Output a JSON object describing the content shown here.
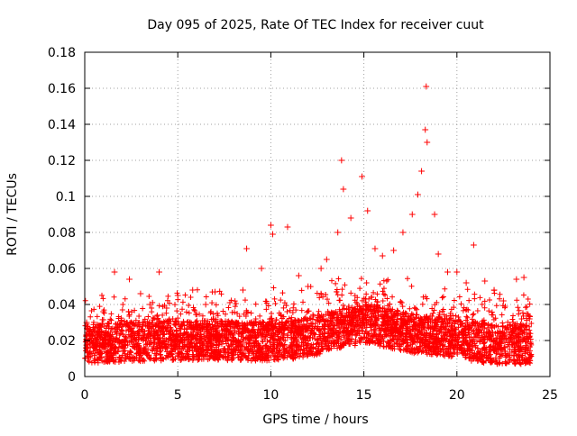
{
  "chart_data": {
    "type": "scatter",
    "title": "Day 095 of 2025, Rate Of TEC Index for receiver cuut",
    "xlabel": "GPS time / hours",
    "ylabel": "ROTI / TECUs",
    "xlim": [
      0,
      25
    ],
    "ylim": [
      0,
      0.18
    ],
    "xticks": [
      0,
      5,
      10,
      15,
      20,
      25
    ],
    "xtick_labels": [
      "0",
      "5",
      "10",
      "15",
      "20",
      "25"
    ],
    "yticks": [
      0,
      0.02,
      0.04,
      0.06,
      0.08,
      0.1,
      0.12,
      0.14,
      0.16,
      0.18
    ],
    "ytick_labels": [
      "0",
      "0.02",
      "0.04",
      "0.06",
      "0.08",
      "0.1",
      "0.12",
      "0.14",
      "0.16",
      "0.18"
    ],
    "grid": true,
    "marker": "+",
    "color": "#ff0000",
    "series": [
      {
        "name": "ROTI",
        "points": [
          [
            0.1,
            0.03
          ],
          [
            0.4,
            0.023
          ],
          [
            1.0,
            0.036
          ],
          [
            1.6,
            0.058
          ],
          [
            2.4,
            0.054
          ],
          [
            3.0,
            0.046
          ],
          [
            3.5,
            0.04
          ],
          [
            4.0,
            0.058
          ],
          [
            4.4,
            0.038
          ],
          [
            5.0,
            0.045
          ],
          [
            5.8,
            0.048
          ],
          [
            6.5,
            0.04
          ],
          [
            7.0,
            0.047
          ],
          [
            7.8,
            0.041
          ],
          [
            8.5,
            0.048
          ],
          [
            8.7,
            0.071
          ],
          [
            9.5,
            0.06
          ],
          [
            10.0,
            0.084
          ],
          [
            10.1,
            0.079
          ],
          [
            10.9,
            0.083
          ],
          [
            11.5,
            0.056
          ],
          [
            12.0,
            0.05
          ],
          [
            12.7,
            0.06
          ],
          [
            13.0,
            0.065
          ],
          [
            13.6,
            0.08
          ],
          [
            13.8,
            0.12
          ],
          [
            13.9,
            0.104
          ],
          [
            14.3,
            0.088
          ],
          [
            14.9,
            0.111
          ],
          [
            15.2,
            0.092
          ],
          [
            15.6,
            0.071
          ],
          [
            16.0,
            0.067
          ],
          [
            16.6,
            0.07
          ],
          [
            17.1,
            0.08
          ],
          [
            17.6,
            0.09
          ],
          [
            17.9,
            0.101
          ],
          [
            18.1,
            0.114
          ],
          [
            18.3,
            0.137
          ],
          [
            18.35,
            0.161
          ],
          [
            18.4,
            0.13
          ],
          [
            18.8,
            0.09
          ],
          [
            19.0,
            0.068
          ],
          [
            19.5,
            0.058
          ],
          [
            20.0,
            0.058
          ],
          [
            20.5,
            0.052
          ],
          [
            20.9,
            0.073
          ],
          [
            21.5,
            0.053
          ],
          [
            22.0,
            0.048
          ],
          [
            22.5,
            0.042
          ],
          [
            23.2,
            0.054
          ],
          [
            23.6,
            0.055
          ],
          [
            23.9,
            0.032
          ]
        ]
      }
    ]
  }
}
